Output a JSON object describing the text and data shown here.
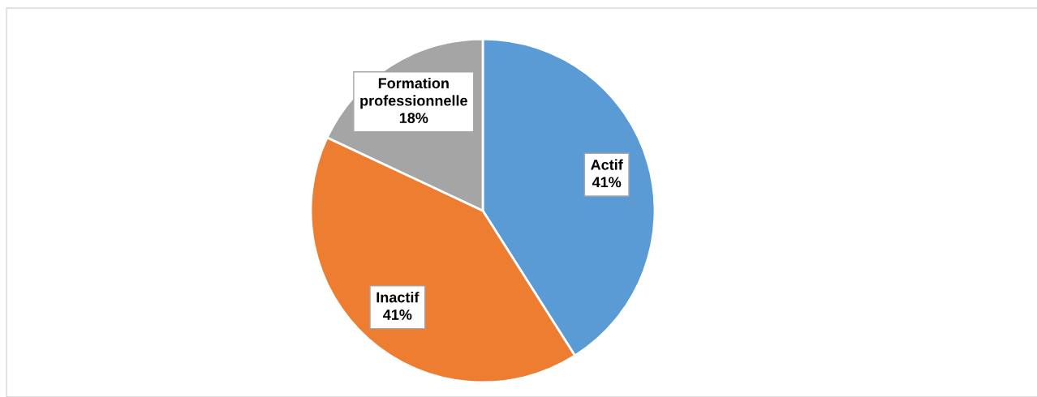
{
  "chart_data": {
    "type": "pie",
    "categories": [
      "Actif",
      "Inactif",
      "Formation professionnelle"
    ],
    "values": [
      41,
      41,
      18
    ],
    "colors": [
      "#5b9bd5",
      "#ed7d31",
      "#a5a5a5"
    ],
    "value_labels": [
      "41%",
      "41%",
      "18%"
    ],
    "legend": false
  }
}
